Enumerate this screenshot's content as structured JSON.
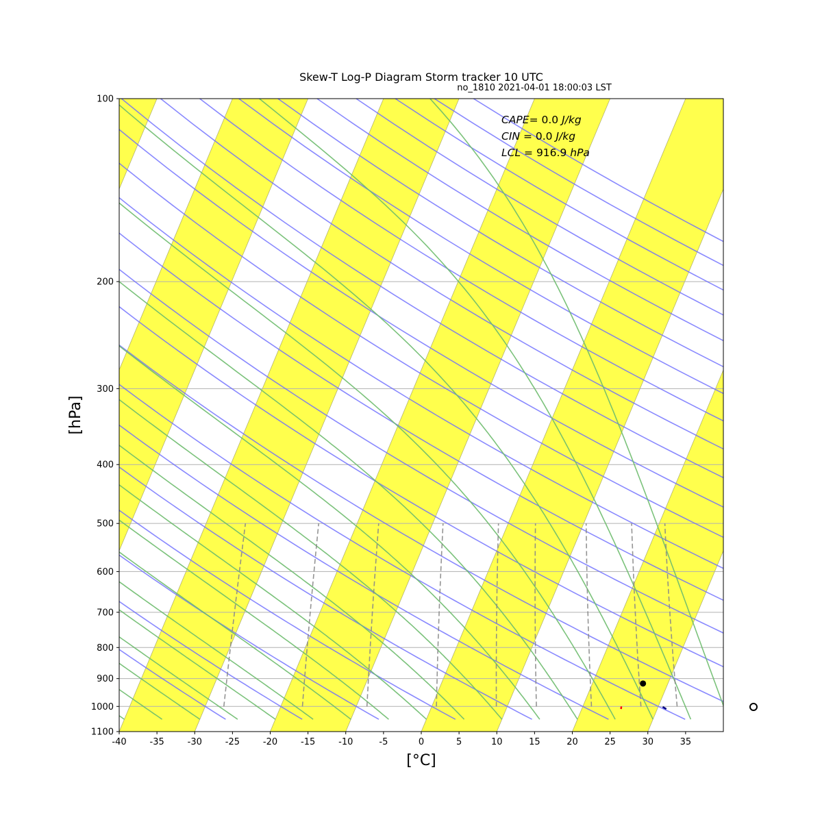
{
  "chart_data": {
    "type": "skew-t log-p",
    "title": "Skew-T Log-P Diagram Storm tracker 10 UTC",
    "subtitle": "no_1810 2021-04-01 18:00:03 LST",
    "xlabel": "[°C]",
    "ylabel": "[hPa]",
    "xlim": [
      -40,
      40
    ],
    "ylim": [
      1100,
      100
    ],
    "y_scale": "log",
    "x_ticks": [
      -40,
      -35,
      -30,
      -25,
      -20,
      -15,
      -10,
      -5,
      0,
      5,
      10,
      15,
      20,
      25,
      30,
      35
    ],
    "y_ticks": [
      100,
      200,
      300,
      400,
      500,
      600,
      700,
      800,
      900,
      1000,
      1100
    ],
    "grid": "horizontal at pressure ticks",
    "isotherm_bands": {
      "color": "#ffff4d",
      "width_degC": 10
    },
    "dry_adiabat_color": "#6b6bff",
    "moist_adiabat_color": "#6dbb6d",
    "mixing_ratio_color": "#888888",
    "annotations": [
      {
        "label": "CAPE",
        "value": "= 0.0",
        "unit": "J/kg"
      },
      {
        "label": "CIN",
        "value": "= 0.0",
        "unit": "J/kg"
      },
      {
        "label": "LCL",
        "value": "= 916.9",
        "unit": "hPa"
      }
    ],
    "lcl_point": {
      "pressure_hPa": 916.9,
      "temperature_C": 26.7
    },
    "temperature_profile": {
      "color": "#ff0000",
      "points": [
        [
          1000,
          25.1
        ],
        [
          1010,
          25.2
        ]
      ]
    },
    "dewpoint_profile": {
      "color": "#000080",
      "points": [
        [
          1002,
          30.6
        ],
        [
          1010,
          31.2
        ]
      ]
    }
  }
}
